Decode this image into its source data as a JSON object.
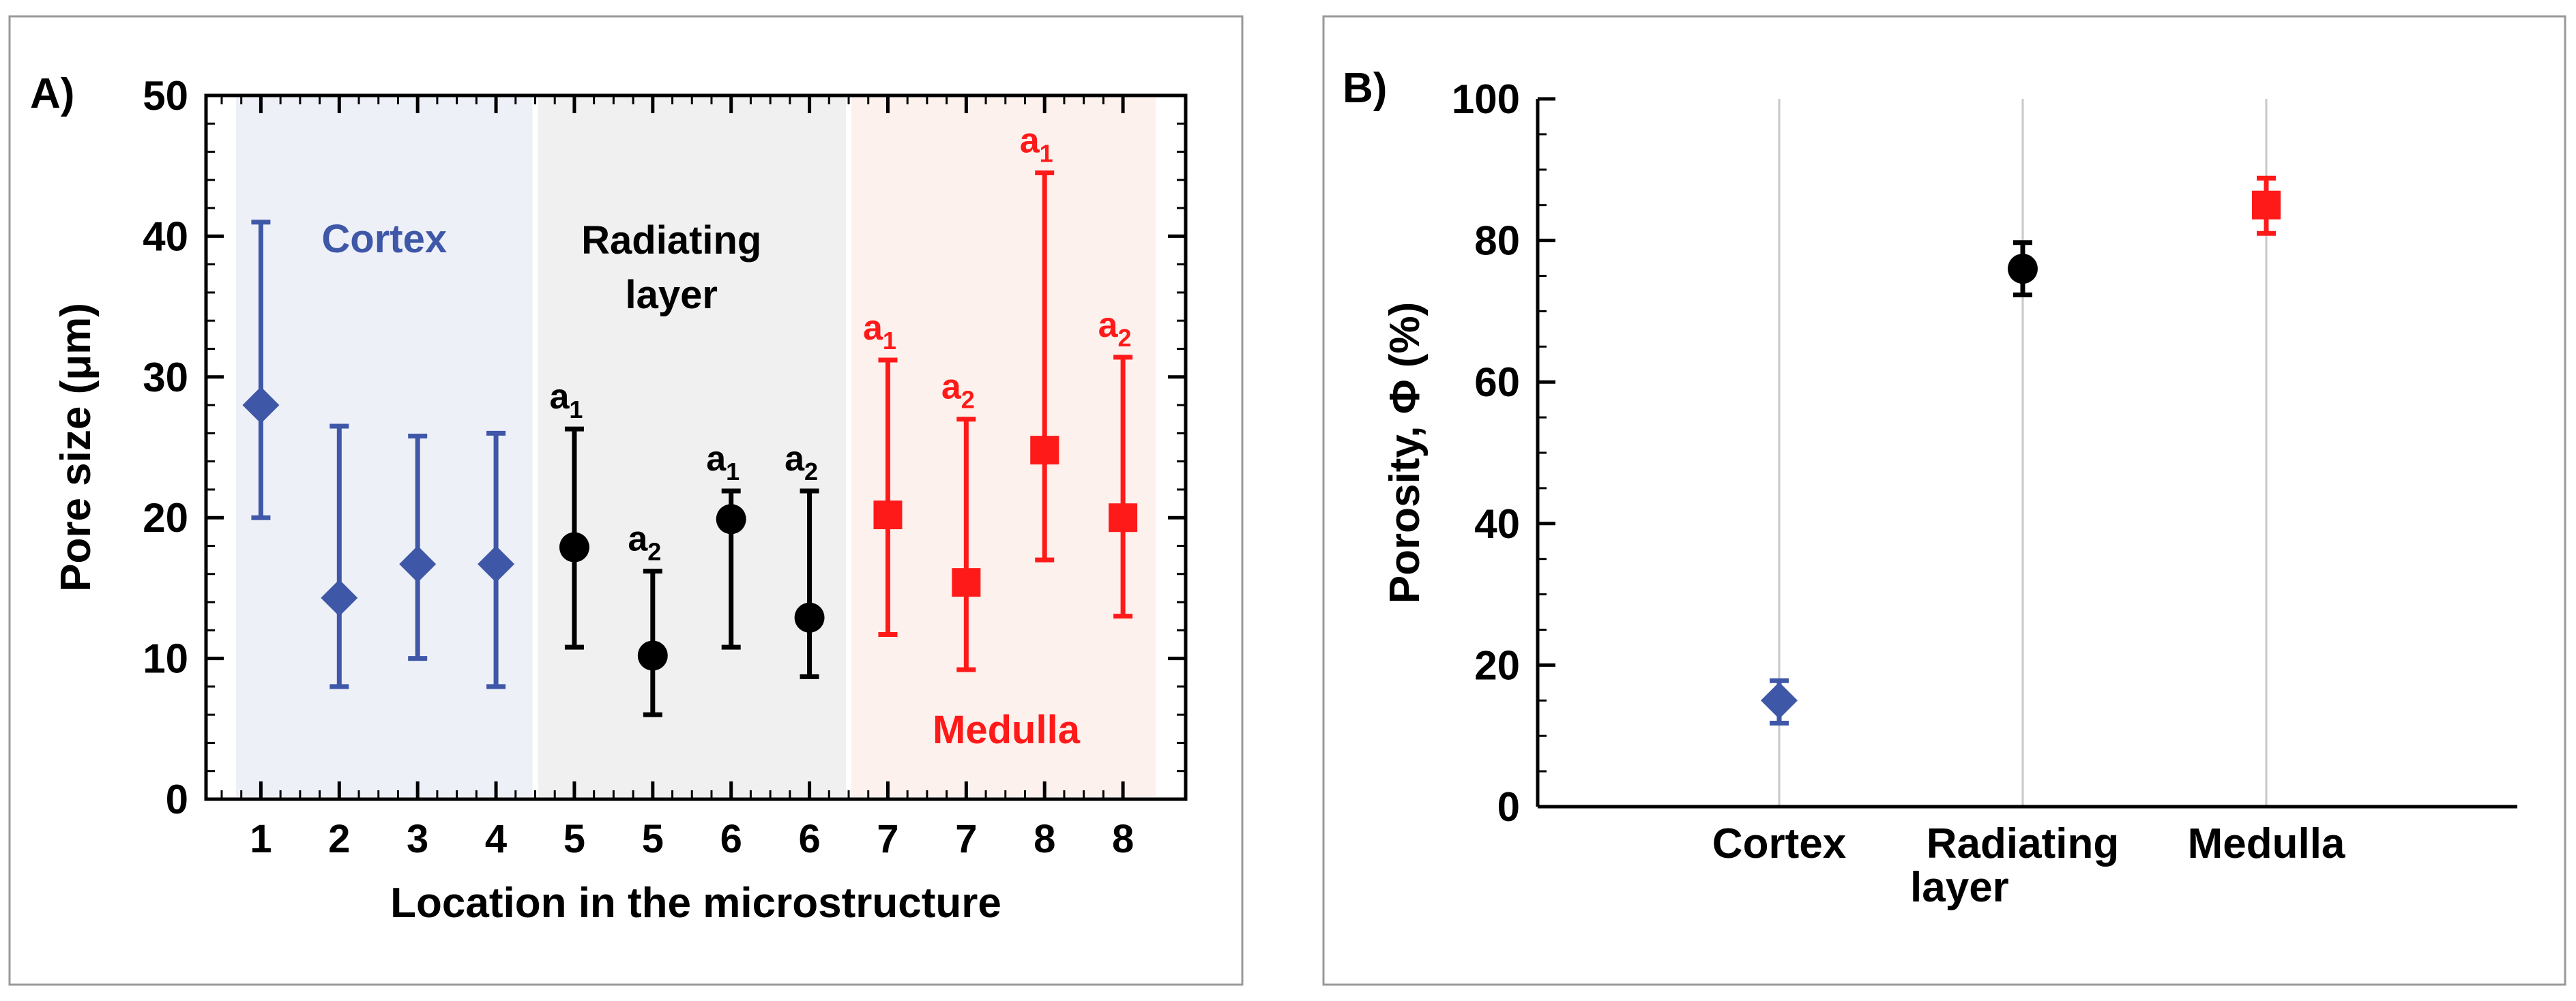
{
  "colors": {
    "cortex": "#3F57A7",
    "radiating": "#000000",
    "medulla": "#FF1A1A",
    "cortex_bg": "#EEF0F8",
    "radiating_bg": "#F0F0F0",
    "medulla_bg": "#FDF1ED",
    "frame": "#999999"
  },
  "chart_data": [
    {
      "type": "scatter",
      "panel_label": "A)",
      "xlabel": "Location in the microstructure",
      "ylabel": "Pore size (μm)",
      "ylim": [
        0,
        50
      ],
      "yticks": [
        0,
        10,
        20,
        30,
        40,
        50
      ],
      "regions": [
        {
          "name": "Cortex",
          "label_lines": [
            "Cortex"
          ],
          "group": "cortex"
        },
        {
          "name": "Radiating layer",
          "label_lines": [
            "Radiating",
            "layer"
          ],
          "group": "radiating"
        },
        {
          "name": "Medulla",
          "label_lines": [
            "Medulla"
          ],
          "group": "medulla"
        }
      ],
      "points": [
        {
          "x_label": "1",
          "value": 28,
          "low": 20,
          "high": 41,
          "group": "cortex",
          "marker": "diamond",
          "annotation": ""
        },
        {
          "x_label": "2",
          "value": 14.3,
          "low": 8,
          "high": 26.5,
          "group": "cortex",
          "marker": "diamond",
          "annotation": ""
        },
        {
          "x_label": "3",
          "value": 16.7,
          "low": 10,
          "high": 25.8,
          "group": "cortex",
          "marker": "diamond",
          "annotation": ""
        },
        {
          "x_label": "4",
          "value": 16.7,
          "low": 8,
          "high": 26,
          "group": "cortex",
          "marker": "diamond",
          "annotation": ""
        },
        {
          "x_label": "5",
          "value": 17.9,
          "low": 10.8,
          "high": 26.3,
          "group": "radiating",
          "marker": "circle",
          "annotation": "a1"
        },
        {
          "x_label": "5",
          "value": 10.2,
          "low": 6,
          "high": 16.2,
          "group": "radiating",
          "marker": "circle",
          "annotation": "a2"
        },
        {
          "x_label": "6",
          "value": 19.9,
          "low": 10.8,
          "high": 21.9,
          "group": "radiating",
          "marker": "circle",
          "annotation": "a1"
        },
        {
          "x_label": "6",
          "value": 12.9,
          "low": 8.7,
          "high": 21.9,
          "group": "radiating",
          "marker": "circle",
          "annotation": "a2"
        },
        {
          "x_label": "7",
          "value": 20.2,
          "low": 11.7,
          "high": 31.2,
          "group": "medulla",
          "marker": "square",
          "annotation": "a1"
        },
        {
          "x_label": "7",
          "value": 15.4,
          "low": 9.2,
          "high": 27,
          "group": "medulla",
          "marker": "square",
          "annotation": "a2"
        },
        {
          "x_label": "8",
          "value": 24.8,
          "low": 17,
          "high": 44.5,
          "group": "medulla",
          "marker": "square",
          "annotation": "a1"
        },
        {
          "x_label": "8",
          "value": 20,
          "low": 13,
          "high": 31.4,
          "group": "medulla",
          "marker": "square",
          "annotation": "a2"
        }
      ]
    },
    {
      "type": "scatter",
      "panel_label": "B)",
      "xlabel": "",
      "ylabel": "Porosity, Φ (%)",
      "ylim": [
        0,
        100
      ],
      "yticks": [
        0,
        20,
        40,
        60,
        80,
        100
      ],
      "categories": [
        {
          "label_lines": [
            "Cortex"
          ],
          "value": 15,
          "low": 11.8,
          "high": 17.8,
          "group": "cortex",
          "marker": "diamond"
        },
        {
          "label_lines": [
            "Radiating",
            "layer"
          ],
          "value": 76,
          "low": 72.3,
          "high": 79.7,
          "group": "radiating",
          "marker": "circle"
        },
        {
          "label_lines": [
            "Medulla"
          ],
          "value": 85,
          "low": 81,
          "high": 88.8,
          "group": "medulla",
          "marker": "square"
        }
      ]
    }
  ]
}
